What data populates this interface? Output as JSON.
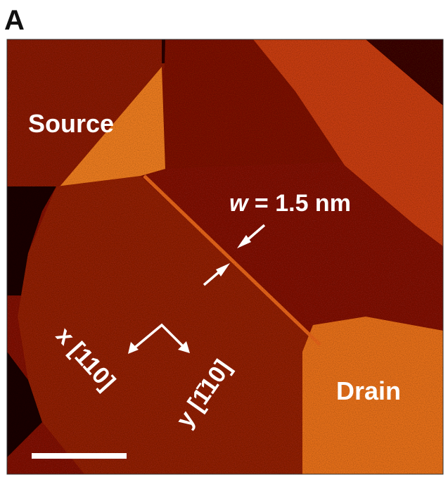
{
  "panel_label": "A",
  "labels": {
    "source": "Source",
    "drain": "Drain",
    "width_symbol": "w",
    "width_value": "= 1.5 nm",
    "x_axis": "x [110]",
    "y_axis": "y [1̄10]"
  }
}
